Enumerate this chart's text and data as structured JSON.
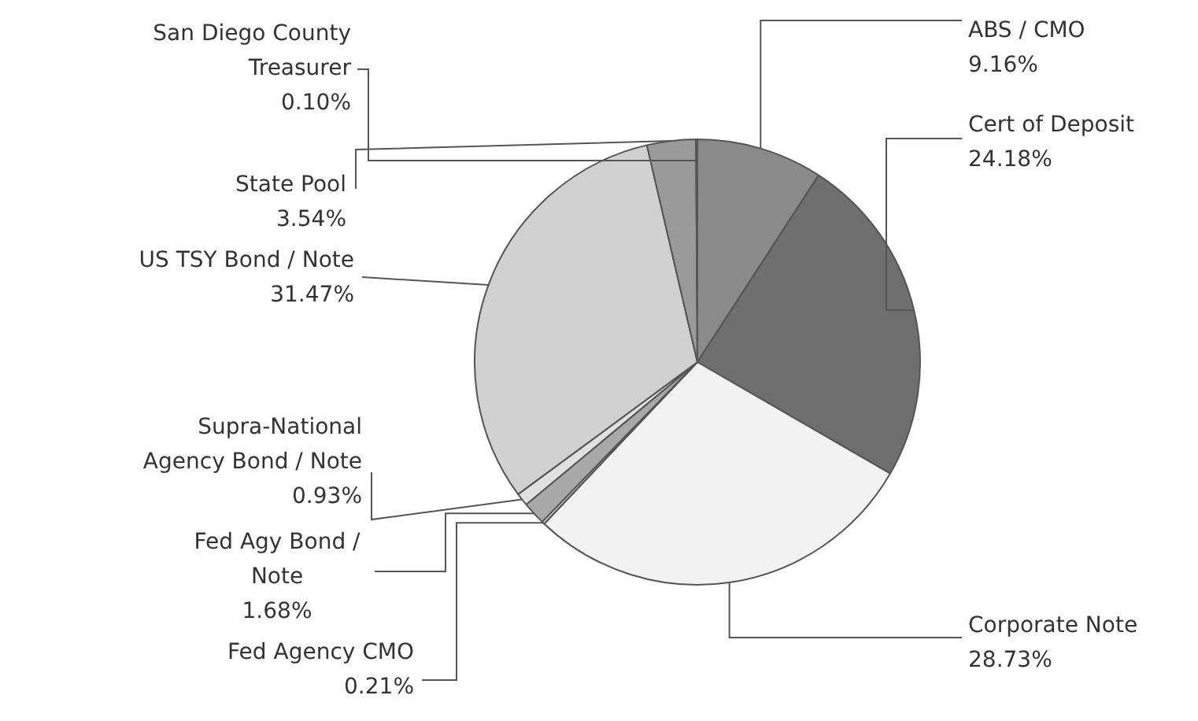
{
  "chart_data": {
    "type": "pie",
    "categories": [
      "ABS / CMO",
      "Cert of Deposit",
      "Corporate Note",
      "Fed Agency CMO",
      "Fed Agy Bond / Note",
      "Supra-National Agency Bond / Note",
      "US TSY Bond / Note",
      "State Pool",
      "San Diego County Treasurer"
    ],
    "values": [
      9.16,
      24.18,
      28.73,
      0.21,
      1.68,
      0.93,
      31.47,
      3.54,
      0.1
    ],
    "value_labels": [
      "9.16%",
      "24.18%",
      "28.73%",
      "0.21%",
      "1.68%",
      "0.93%",
      "31.47%",
      "3.54%",
      "0.10%"
    ],
    "colors": [
      "#8a8a8a",
      "#6f6f6f",
      "#f2f2f2",
      "#c8c8c8",
      "#a8a8a8",
      "#e0e0e0",
      "#d0d0d0",
      "#9a9a9a",
      "#707070"
    ],
    "legend": false
  }
}
